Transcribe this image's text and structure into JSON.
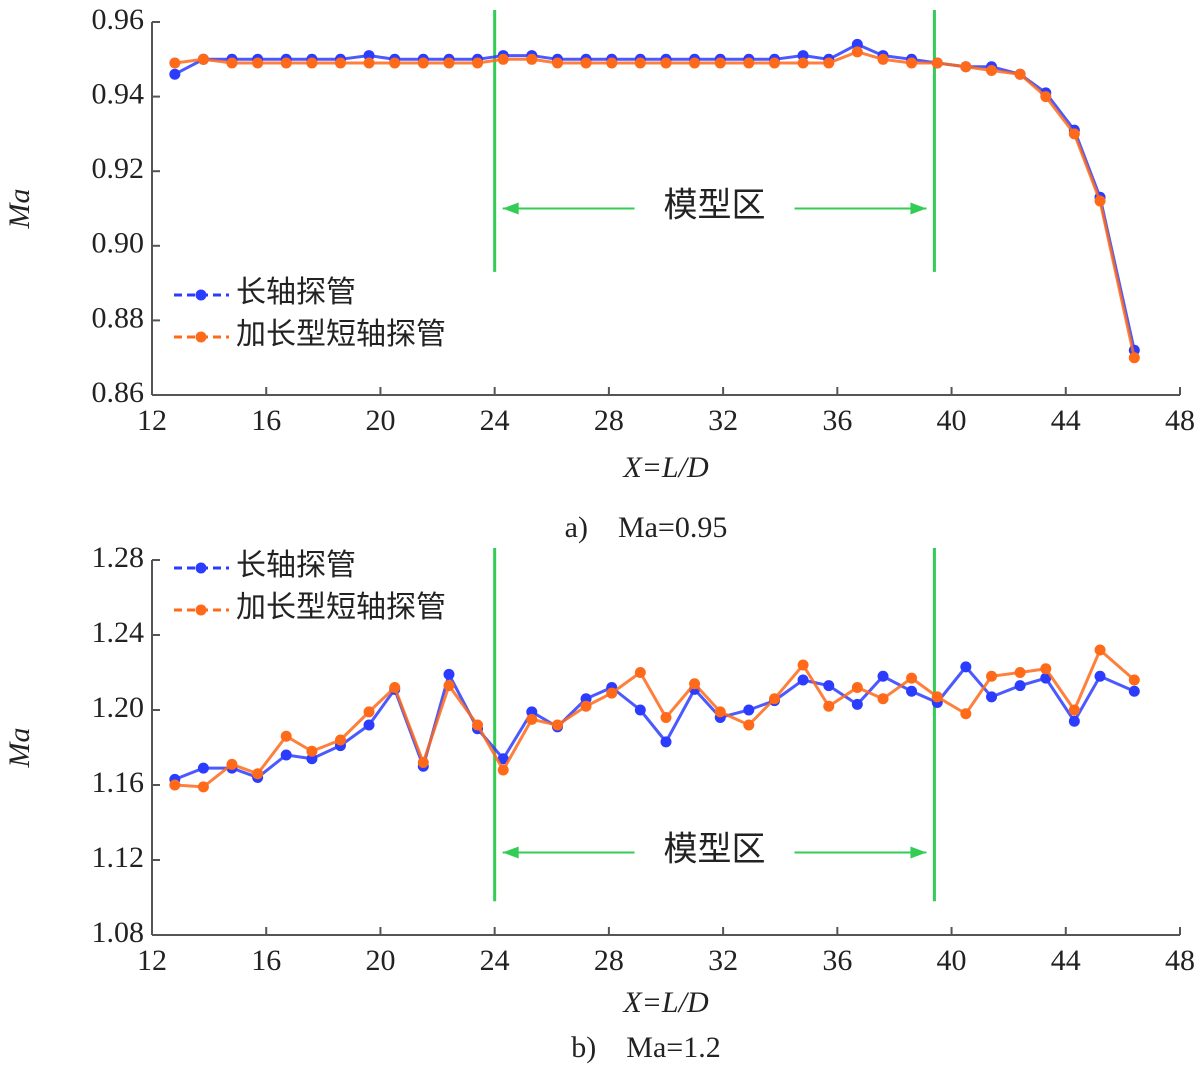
{
  "chart_data": [
    {
      "type": "line",
      "caption": "a)　Ma=0.95",
      "xlabel": "X=L/D",
      "ylabel": "Ma",
      "x": [
        12.8,
        13.8,
        14.8,
        15.7,
        16.7,
        17.6,
        18.6,
        19.6,
        20.5,
        21.5,
        22.4,
        23.4,
        24.3,
        25.3,
        26.2,
        27.2,
        28.1,
        29.1,
        30.0,
        31.0,
        31.9,
        32.9,
        33.8,
        34.8,
        35.7,
        36.7,
        37.6,
        38.6,
        39.5,
        40.5,
        41.4,
        42.4,
        43.3,
        44.3,
        45.2,
        46.4
      ],
      "series": [
        {
          "name": "长轴探管",
          "color": "#2b3cff",
          "values": [
            0.946,
            0.95,
            0.95,
            0.95,
            0.95,
            0.95,
            0.95,
            0.951,
            0.95,
            0.95,
            0.95,
            0.95,
            0.951,
            0.951,
            0.95,
            0.95,
            0.95,
            0.95,
            0.95,
            0.95,
            0.95,
            0.95,
            0.95,
            0.951,
            0.95,
            0.954,
            0.951,
            0.95,
            0.949,
            0.948,
            0.948,
            0.946,
            0.941,
            0.931,
            0.913,
            0.872
          ]
        },
        {
          "name": "加长型短轴探管",
          "color": "#ff6a1a",
          "values": [
            0.949,
            0.95,
            0.949,
            0.949,
            0.949,
            0.949,
            0.949,
            0.949,
            0.949,
            0.949,
            0.949,
            0.949,
            0.95,
            0.95,
            0.949,
            0.949,
            0.949,
            0.949,
            0.949,
            0.949,
            0.949,
            0.949,
            0.949,
            0.949,
            0.949,
            0.952,
            0.95,
            0.949,
            0.949,
            0.948,
            0.947,
            0.946,
            0.94,
            0.93,
            0.912,
            0.87
          ]
        }
      ],
      "xlim": [
        12,
        48
      ],
      "xticks": [
        12,
        16,
        20,
        24,
        28,
        32,
        36,
        40,
        44,
        48
      ],
      "ylim": [
        0.86,
        0.96
      ],
      "yticks": [
        0.86,
        0.88,
        {
          "value": 0.9,
          "label": "0.90"
        },
        0.92,
        0.94,
        0.96
      ],
      "legend": "lower left",
      "region": {
        "x": [
          24,
          39.4
        ],
        "label": "模型区",
        "color": "#33cc55"
      }
    },
    {
      "type": "line",
      "caption": "b)　Ma=1.2",
      "xlabel": "X=L/D",
      "ylabel": "Ma",
      "x": [
        12.8,
        13.8,
        14.8,
        15.7,
        16.7,
        17.6,
        18.6,
        19.6,
        20.5,
        21.5,
        22.4,
        23.4,
        24.3,
        25.3,
        26.2,
        27.2,
        28.1,
        29.1,
        30.0,
        31.0,
        31.9,
        32.9,
        33.8,
        34.8,
        35.7,
        36.7,
        37.6,
        38.6,
        39.5,
        40.5,
        41.4,
        42.4,
        43.3,
        44.3,
        45.2,
        46.4
      ],
      "series": [
        {
          "name": "长轴探管",
          "color": "#2b3cff",
          "values": [
            1.163,
            1.169,
            1.169,
            1.164,
            1.176,
            1.174,
            1.181,
            1.192,
            1.211,
            1.17,
            1.219,
            1.19,
            1.174,
            1.199,
            1.191,
            1.206,
            1.212,
            1.2,
            1.183,
            1.211,
            1.196,
            1.2,
            1.205,
            1.216,
            1.213,
            1.203,
            1.218,
            1.21,
            1.204,
            1.223,
            1.207,
            1.213,
            1.217,
            1.194,
            1.218,
            1.21
          ]
        },
        {
          "name": "加长型短轴探管",
          "color": "#ff6a1a",
          "values": [
            1.16,
            1.159,
            1.171,
            1.166,
            1.186,
            1.178,
            1.184,
            1.199,
            1.212,
            1.172,
            1.213,
            1.192,
            1.168,
            1.195,
            1.192,
            1.202,
            1.209,
            1.22,
            1.196,
            1.214,
            1.199,
            1.192,
            1.206,
            1.224,
            1.202,
            1.212,
            1.206,
            1.217,
            1.207,
            1.198,
            1.218,
            1.22,
            1.222,
            1.2,
            1.232,
            1.216
          ]
        }
      ],
      "xlim": [
        12,
        48
      ],
      "xticks": [
        12,
        16,
        20,
        24,
        28,
        32,
        36,
        40,
        44,
        48
      ],
      "ylim": [
        1.08,
        1.28
      ],
      "yticks": [
        1.08,
        1.12,
        1.16,
        {
          "value": 1.2,
          "label": "1.20"
        },
        1.24,
        1.28
      ],
      "legend": "upper left",
      "region": {
        "x": [
          24,
          39.4
        ],
        "label": "模型区",
        "color": "#33cc55"
      }
    }
  ]
}
